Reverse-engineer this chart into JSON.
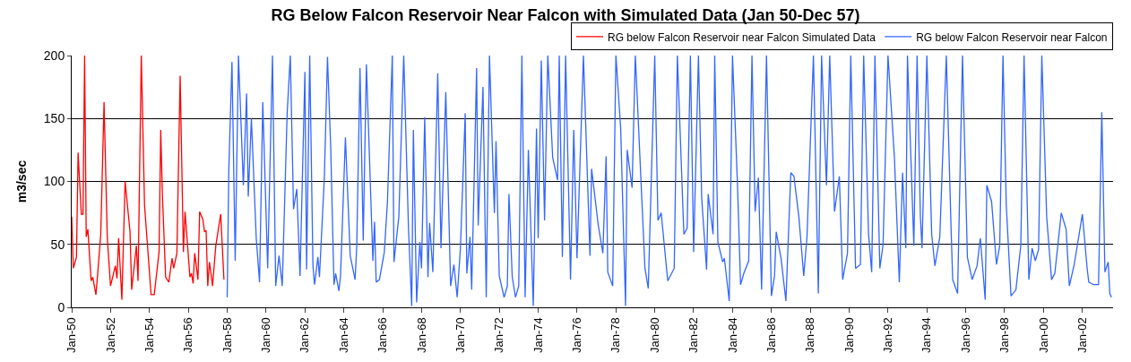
{
  "chart_data": {
    "type": "line",
    "title": "RG Below Falcon Reservoir Near Falcon with Simulated Data (Jan 50-Dec 57)",
    "ylabel": "m3/sec",
    "xlim": [
      "1950-01",
      "2003-08"
    ],
    "xticks": [
      {
        "value": "1950-01",
        "label": "Jan-50"
      },
      {
        "value": "1952-01",
        "label": "Jan-52"
      },
      {
        "value": "1954-01",
        "label": "Jan-54"
      },
      {
        "value": "1956-01",
        "label": "Jan-56"
      },
      {
        "value": "1958-01",
        "label": "Jan-58"
      },
      {
        "value": "1960-01",
        "label": "Jan-60"
      },
      {
        "value": "1962-01",
        "label": "Jan-62"
      },
      {
        "value": "1964-01",
        "label": "Jan-64"
      },
      {
        "value": "1966-01",
        "label": "Jan-66"
      },
      {
        "value": "1968-01",
        "label": "Jan-68"
      },
      {
        "value": "1970-01",
        "label": "Jan-70"
      },
      {
        "value": "1972-01",
        "label": "Jan-72"
      },
      {
        "value": "1974-01",
        "label": "Jan-74"
      },
      {
        "value": "1976-01",
        "label": "Jan-76"
      },
      {
        "value": "1978-01",
        "label": "Jan-78"
      },
      {
        "value": "1980-01",
        "label": "Jan-80"
      },
      {
        "value": "1982-01",
        "label": "Jan-82"
      },
      {
        "value": "1984-01",
        "label": "Jan-84"
      },
      {
        "value": "1986-01",
        "label": "Jan-86"
      },
      {
        "value": "1988-01",
        "label": "Jan-88"
      },
      {
        "value": "1990-01",
        "label": "Jan-90"
      },
      {
        "value": "1992-01",
        "label": "Jan-92"
      },
      {
        "value": "1994-01",
        "label": "Jan-94"
      },
      {
        "value": "1996-01",
        "label": "Jan-96"
      },
      {
        "value": "1998-01",
        "label": "Jan-98"
      },
      {
        "value": "2000-01",
        "label": "Jan-00"
      },
      {
        "value": "2002-01",
        "label": "Jan-02"
      }
    ],
    "ylim": [
      0,
      200
    ],
    "yticks": [
      0,
      50,
      100,
      150,
      200
    ],
    "grid": "y",
    "legend": "top right",
    "line_style": "solid",
    "series": [
      {
        "name": "RG below Falcon Reservoir near Falcon Simulated Data",
        "color": "#ff0000",
        "x": [
          "1950-01",
          "1950-02",
          "1950-04",
          "1950-05",
          "1950-07",
          "1950-08",
          "1950-09",
          "1950-10",
          "1950-11",
          "1951-01",
          "1951-02",
          "1951-04",
          "1951-05",
          "1951-07",
          "1951-09",
          "1951-11",
          "1952-01",
          "1952-04",
          "1952-05",
          "1952-06",
          "1952-08",
          "1952-10",
          "1953-01",
          "1953-02",
          "1953-05",
          "1953-06",
          "1953-08",
          "1953-10",
          "1954-02",
          "1954-04",
          "1954-07",
          "1954-08",
          "1954-09",
          "1954-11",
          "1955-01",
          "1955-03",
          "1955-04",
          "1955-06",
          "1955-08",
          "1955-10",
          "1955-11",
          "1956-02",
          "1956-03",
          "1956-04",
          "1956-05",
          "1956-07",
          "1956-08",
          "1956-10",
          "1956-11",
          "1956-12",
          "1957-01",
          "1957-02",
          "1957-04",
          "1957-06",
          "1957-09",
          "1957-11"
        ],
        "values": [
          72,
          31,
          40,
          123,
          74,
          74,
          200,
          56,
          62,
          21,
          24,
          10,
          25,
          58,
          163,
          55,
          17,
          33,
          23,
          55,
          6,
          100,
          60,
          14,
          49,
          21,
          200,
          81,
          10,
          10,
          44,
          141,
          90,
          24,
          20,
          39,
          31,
          43,
          184,
          44,
          76,
          24,
          27,
          19,
          43,
          22,
          76,
          70,
          60,
          61,
          17,
          36,
          17,
          49,
          74,
          22
        ]
      },
      {
        "name": "RG below Falcon Reservoir near Falcon",
        "color": "#3366ff",
        "x": [
          "1958-01",
          "1958-02",
          "1958-04",
          "1958-06",
          "1958-08",
          "1958-11",
          "1959-01",
          "1959-02",
          "1959-04",
          "1959-07",
          "1959-09",
          "1959-11",
          "1960-02",
          "1960-05",
          "1960-07",
          "1960-09",
          "1960-11",
          "1961-02",
          "1961-04",
          "1961-06",
          "1961-08",
          "1961-10",
          "1962-01",
          "1962-02",
          "1962-04",
          "1962-06",
          "1962-07",
          "1962-09",
          "1962-10",
          "1963-01",
          "1963-03",
          "1963-05",
          "1963-07",
          "1963-08",
          "1963-10",
          "1963-11",
          "1964-02",
          "1964-05",
          "1964-08",
          "1964-09",
          "1964-11",
          "1965-01",
          "1965-03",
          "1965-07",
          "1965-08",
          "1965-09",
          "1965-11",
          "1966-02",
          "1966-04",
          "1966-07",
          "1966-08",
          "1966-11",
          "1967-02",
          "1967-05",
          "1967-07",
          "1967-08",
          "1967-10",
          "1967-12",
          "1968-01",
          "1968-03",
          "1968-05",
          "1968-06",
          "1968-08",
          "1968-11",
          "1969-01",
          "1969-04",
          "1969-07",
          "1969-09",
          "1969-11",
          "1970-01",
          "1970-04",
          "1970-05",
          "1970-07",
          "1970-08",
          "1970-11",
          "1970-12",
          "1971-03",
          "1971-05",
          "1971-07",
          "1971-10",
          "1971-11",
          "1972-01",
          "1972-04",
          "1972-06",
          "1972-07",
          "1972-09",
          "1972-11",
          "1973-01",
          "1973-03",
          "1973-05",
          "1973-07",
          "1973-10",
          "1973-12",
          "1974-01",
          "1974-03",
          "1974-05",
          "1974-07",
          "1974-10",
          "1975-01",
          "1975-02",
          "1975-04",
          "1975-06",
          "1975-09",
          "1975-11",
          "1976-01",
          "1976-05",
          "1976-09",
          "1976-10",
          "1977-02",
          "1977-05",
          "1977-07",
          "1977-08",
          "1977-11",
          "1978-01",
          "1978-04",
          "1978-07",
          "1978-08",
          "1978-11",
          "1979-01",
          "1979-07",
          "1979-09",
          "1980-01",
          "1980-03",
          "1980-05",
          "1980-09",
          "1981-01",
          "1981-03",
          "1981-07",
          "1981-09",
          "1981-11",
          "1982-01",
          "1982-04",
          "1982-06",
          "1982-09",
          "1982-10",
          "1983-01",
          "1983-02",
          "1983-04",
          "1983-07",
          "1983-08",
          "1983-11",
          "1984-01",
          "1984-04",
          "1984-06",
          "1984-08",
          "1984-11",
          "1985-01",
          "1985-03",
          "1985-05",
          "1985-07",
          "1985-10",
          "1986-01",
          "1986-03",
          "1986-04",
          "1986-07",
          "1986-10",
          "1987-01",
          "1987-03",
          "1987-06",
          "1987-09",
          "1987-11",
          "1988-03",
          "1988-06",
          "1988-08",
          "1988-11",
          "1989-01",
          "1989-04",
          "1989-07",
          "1989-09",
          "1989-12",
          "1990-02",
          "1990-05",
          "1990-08",
          "1990-10",
          "1991-01",
          "1991-03",
          "1991-05",
          "1991-08",
          "1991-10",
          "1992-01",
          "1992-05",
          "1992-08",
          "1992-10",
          "1992-12",
          "1993-01",
          "1993-05",
          "1993-07",
          "1993-09",
          "1993-10",
          "1994-01",
          "1994-04",
          "1994-06",
          "1994-09",
          "1995-01",
          "1995-04",
          "1995-05",
          "1995-08",
          "1995-11",
          "1996-02",
          "1996-05",
          "1996-08",
          "1996-10",
          "1997-01",
          "1997-02",
          "1997-05",
          "1997-08",
          "1997-10",
          "1997-12",
          "1998-02",
          "1998-05",
          "1998-08",
          "1998-11",
          "1999-01",
          "1999-04",
          "1999-06",
          "1999-08",
          "1999-10",
          "1999-12",
          "2000-03",
          "2000-06",
          "2000-08",
          "2000-12",
          "2001-03",
          "2001-05",
          "2001-08",
          "2001-10",
          "2002-01",
          "2002-04",
          "2002-05",
          "2002-08",
          "2002-11",
          "2003-01",
          "2003-03",
          "2003-05",
          "2003-06",
          "2003-07"
        ],
        "values": [
          8,
          110,
          195,
          37,
          200,
          97,
          170,
          88,
          150,
          55,
          20,
          163,
          31,
          200,
          17,
          41,
          17,
          154,
          200,
          78,
          94,
          25,
          187,
          30,
          200,
          33,
          18,
          40,
          24,
          103,
          199,
          126,
          18,
          27,
          13,
          25,
          135,
          41,
          22,
          49,
          190,
          53,
          193,
          37,
          68,
          20,
          22,
          44,
          84,
          200,
          36,
          72,
          200,
          63,
          1,
          141,
          4,
          52,
          31,
          151,
          24,
          67,
          28,
          186,
          47,
          171,
          17,
          34,
          8,
          47,
          154,
          27,
          56,
          14,
          190,
          65,
          175,
          8,
          200,
          75,
          132,
          25,
          8,
          17,
          90,
          24,
          8,
          17,
          200,
          8,
          125,
          1,
          142,
          55,
          196,
          69,
          200,
          119,
          101,
          200,
          40,
          200,
          22,
          141,
          39,
          200,
          41,
          110,
          66,
          43,
          120,
          28,
          17,
          200,
          142,
          1,
          125,
          95,
          200,
          31,
          15,
          200,
          69,
          75,
          21,
          31,
          200,
          58,
          63,
          200,
          44,
          200,
          87,
          30,
          90,
          58,
          200,
          52,
          36,
          39,
          5,
          200,
          101,
          18,
          27,
          37,
          200,
          76,
          103,
          14,
          200,
          9,
          25,
          60,
          39,
          5,
          107,
          104,
          72,
          25,
          56,
          200,
          11,
          200,
          97,
          200,
          76,
          104,
          22,
          43,
          200,
          31,
          34,
          200,
          58,
          28,
          200,
          31,
          50,
          200,
          119,
          20,
          107,
          47,
          200,
          49,
          200,
          72,
          47,
          200,
          58,
          33,
          56,
          200,
          62,
          22,
          11,
          200,
          40,
          22,
          33,
          55,
          6,
          97,
          84,
          34,
          49,
          200,
          81,
          9,
          14,
          49,
          200,
          22,
          47,
          37,
          46,
          200,
          72,
          22,
          27,
          75,
          62,
          17,
          34,
          50,
          74,
          31,
          20,
          18,
          18,
          155,
          28,
          36,
          11,
          8
        ]
      }
    ]
  }
}
